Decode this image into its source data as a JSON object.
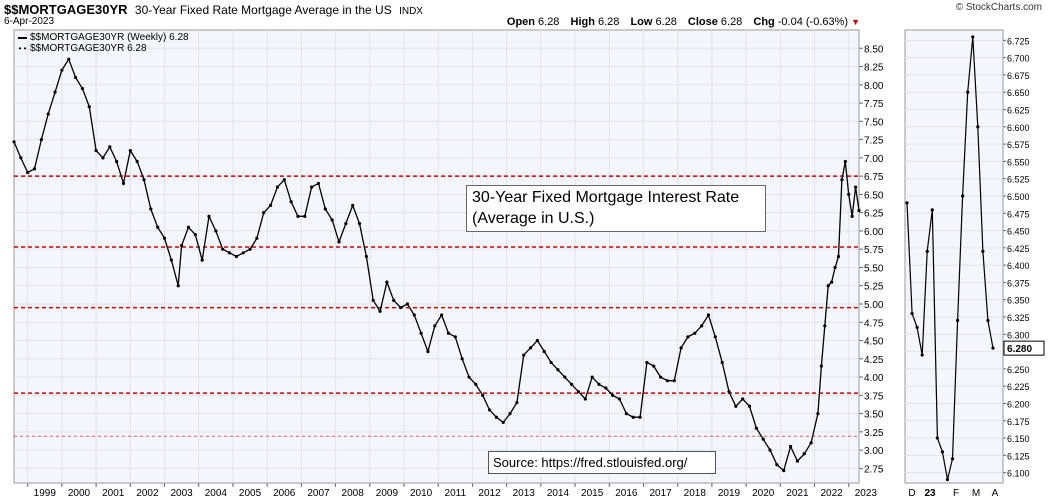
{
  "header": {
    "symbol": "$$MORTGAGE30YR",
    "description": "30-Year Fixed Rate Mortgage Average in the US",
    "exchange": "INDX",
    "date": "6-Apr-2023",
    "brand": "© StockCharts.com",
    "open_label": "Open",
    "open": "6.28",
    "high_label": "High",
    "high": "6.28",
    "low_label": "Low",
    "low": "6.28",
    "close_label": "Close",
    "close": "6.28",
    "chg_label": "Chg",
    "chg": "-0.04 (-0.63%)"
  },
  "legend": {
    "line": "$$MORTGAGE30YR (Weekly) 6.28",
    "dots": "$$MORTGAGE30YR 6.28"
  },
  "annotations": {
    "box_line1": "30-Year Fixed Mortgage Interest Rate",
    "box_line2": "(Average in U.S.)",
    "source": "Source: https://fred.stlouisfed.org/"
  },
  "colors": {
    "plot_bg": "#f4f6fb",
    "grid": "#dfe3ea",
    "reference_line": "#cc0000",
    "series": "#000000",
    "last_value_box": "#ffffff"
  },
  "chart_data": [
    {
      "type": "line",
      "name": "main",
      "title": "",
      "xlabel": "",
      "ylabel": "",
      "x_ticks": [
        "1999",
        "2000",
        "2001",
        "2002",
        "2003",
        "2004",
        "2005",
        "2006",
        "2007",
        "2008",
        "2009",
        "2010",
        "2011",
        "2012",
        "2013",
        "2014",
        "2015",
        "2016",
        "2017",
        "2018",
        "2019",
        "2020",
        "2021",
        "2022",
        "2023"
      ],
      "xlim": [
        1998.6,
        2023.3
      ],
      "ylim": [
        2.55,
        8.75
      ],
      "y_ticks": [
        2.75,
        3.0,
        3.25,
        3.5,
        3.75,
        4.0,
        4.25,
        4.5,
        4.75,
        5.0,
        5.25,
        5.5,
        5.75,
        6.0,
        6.25,
        6.5,
        6.75,
        7.0,
        7.25,
        7.5,
        7.75,
        8.0,
        8.25,
        8.5
      ],
      "y_tick_labels": [
        "2.75",
        "3.00",
        "3.25",
        "3.50",
        "3.75",
        "4.00",
        "4.25",
        "4.50",
        "4.75",
        "5.00",
        "5.25",
        "5.50",
        "5.75",
        "6.00",
        "6.25",
        "6.50",
        "6.75",
        "7.00",
        "7.25",
        "7.50",
        "7.75",
        "8.00",
        "8.25",
        "8.50"
      ],
      "reference_lines": [
        6.75,
        5.78,
        4.95,
        3.78
      ],
      "reference_line_faint": 3.19,
      "grid": true,
      "series": [
        {
          "x": [
            1998.6,
            1998.8,
            1999.0,
            1999.2,
            1999.4,
            1999.6,
            1999.8,
            2000.0,
            2000.2,
            2000.4,
            2000.6,
            2000.8,
            2001.0,
            2001.2,
            2001.4,
            2001.6,
            2001.8,
            2002.0,
            2002.2,
            2002.4,
            2002.6,
            2002.8,
            2003.0,
            2003.2,
            2003.4,
            2003.5,
            2003.7,
            2003.9,
            2004.1,
            2004.3,
            2004.5,
            2004.7,
            2004.9,
            2005.1,
            2005.3,
            2005.5,
            2005.7,
            2005.9,
            2006.1,
            2006.3,
            2006.5,
            2006.7,
            2006.9,
            2007.1,
            2007.3,
            2007.5,
            2007.7,
            2007.9,
            2008.1,
            2008.3,
            2008.5,
            2008.7,
            2008.9,
            2009.1,
            2009.3,
            2009.5,
            2009.7,
            2009.9,
            2010.1,
            2010.3,
            2010.5,
            2010.7,
            2010.9,
            2011.1,
            2011.3,
            2011.5,
            2011.7,
            2011.9,
            2012.1,
            2012.3,
            2012.5,
            2012.7,
            2012.9,
            2013.1,
            2013.3,
            2013.5,
            2013.7,
            2013.9,
            2014.1,
            2014.3,
            2014.5,
            2014.7,
            2014.9,
            2015.1,
            2015.3,
            2015.5,
            2015.7,
            2015.9,
            2016.1,
            2016.3,
            2016.5,
            2016.7,
            2016.9,
            2017.1,
            2017.3,
            2017.5,
            2017.7,
            2017.9,
            2018.1,
            2018.3,
            2018.5,
            2018.7,
            2018.9,
            2019.1,
            2019.3,
            2019.5,
            2019.7,
            2019.9,
            2020.1,
            2020.3,
            2020.5,
            2020.7,
            2020.9,
            2021.1,
            2021.3,
            2021.5,
            2021.7,
            2021.9,
            2022.1,
            2022.2,
            2022.3,
            2022.4,
            2022.5,
            2022.6,
            2022.7,
            2022.8,
            2022.9,
            2023.0,
            2023.1,
            2023.2,
            2023.3
          ],
          "y": [
            7.22,
            7.0,
            6.8,
            6.85,
            7.25,
            7.6,
            7.9,
            8.2,
            8.35,
            8.1,
            7.95,
            7.7,
            7.1,
            7.0,
            7.15,
            6.95,
            6.65,
            7.1,
            6.95,
            6.7,
            6.3,
            6.05,
            5.9,
            5.6,
            5.25,
            5.8,
            6.05,
            5.95,
            5.6,
            6.2,
            6.0,
            5.75,
            5.7,
            5.65,
            5.7,
            5.75,
            5.9,
            6.25,
            6.35,
            6.6,
            6.7,
            6.4,
            6.2,
            6.2,
            6.6,
            6.65,
            6.3,
            6.15,
            5.85,
            6.1,
            6.35,
            6.1,
            5.65,
            5.05,
            4.9,
            5.3,
            5.05,
            4.95,
            5.0,
            4.85,
            4.6,
            4.35,
            4.7,
            4.85,
            4.6,
            4.55,
            4.25,
            4.0,
            3.9,
            3.75,
            3.55,
            3.45,
            3.38,
            3.5,
            3.65,
            4.3,
            4.4,
            4.5,
            4.35,
            4.2,
            4.1,
            4.0,
            3.9,
            3.8,
            3.7,
            4.0,
            3.9,
            3.85,
            3.75,
            3.7,
            3.5,
            3.45,
            3.45,
            4.2,
            4.15,
            4.0,
            3.95,
            3.95,
            4.4,
            4.55,
            4.6,
            4.7,
            4.85,
            4.55,
            4.2,
            3.8,
            3.6,
            3.7,
            3.6,
            3.3,
            3.15,
            3.0,
            2.8,
            2.72,
            3.05,
            2.85,
            2.95,
            3.1,
            3.5,
            4.15,
            4.7,
            5.25,
            5.3,
            5.5,
            5.65,
            6.7,
            6.95,
            6.5,
            6.2,
            6.6,
            6.28
          ]
        }
      ]
    },
    {
      "type": "line",
      "name": "inset",
      "title": "",
      "x_ticks": [
        "D",
        "23",
        "F",
        "M",
        "A"
      ],
      "ylim": [
        6.085,
        6.74
      ],
      "y_ticks": [
        6.1,
        6.125,
        6.15,
        6.175,
        6.2,
        6.225,
        6.25,
        6.275,
        6.3,
        6.325,
        6.35,
        6.375,
        6.4,
        6.425,
        6.45,
        6.475,
        6.5,
        6.525,
        6.55,
        6.575,
        6.6,
        6.625,
        6.65,
        6.675,
        6.7,
        6.725
      ],
      "y_tick_labels": [
        "6.100",
        "6.125",
        "6.150",
        "6.175",
        "6.200",
        "6.225",
        "6.250",
        "6.275",
        "6.300",
        "6.325",
        "6.350",
        "6.375",
        "6.400",
        "6.425",
        "6.450",
        "6.475",
        "6.500",
        "6.525",
        "6.550",
        "6.575",
        "6.600",
        "6.625",
        "6.650",
        "6.675",
        "6.700",
        "6.725"
      ],
      "last_value_label": "6.280",
      "series": [
        {
          "y": [
            6.49,
            6.33,
            6.31,
            6.27,
            6.42,
            6.48,
            6.15,
            6.13,
            6.09,
            6.12,
            6.32,
            6.5,
            6.65,
            6.73,
            6.6,
            6.42,
            6.32,
            6.28
          ]
        }
      ]
    }
  ]
}
